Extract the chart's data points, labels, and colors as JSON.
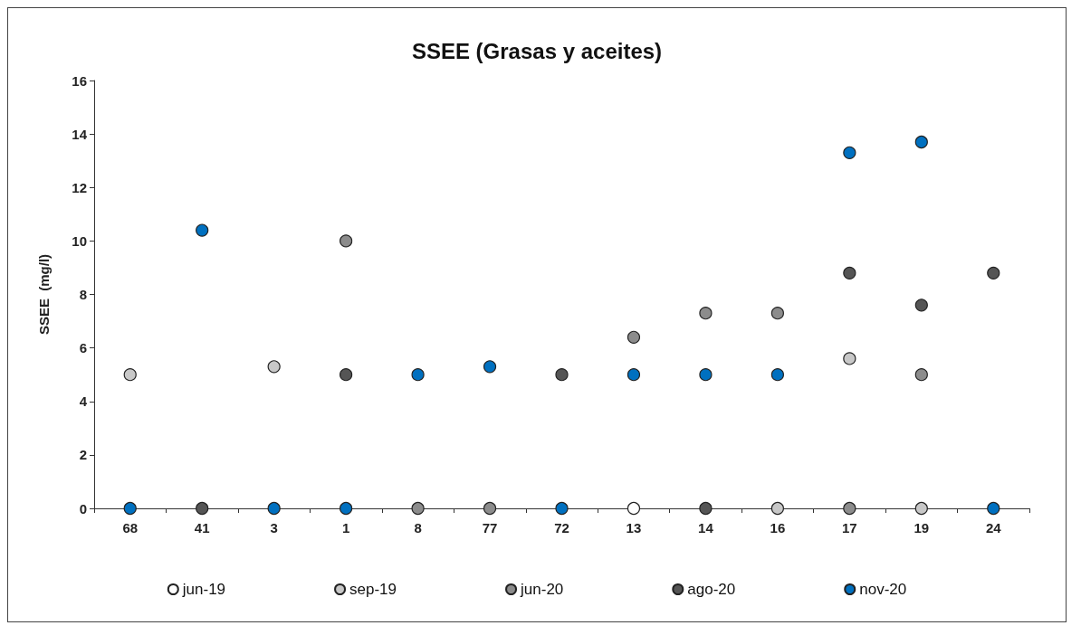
{
  "chart_data": {
    "type": "scatter",
    "title": "SSEE (Grasas y aceites)",
    "ylabel": "SSEE  (mg/l)",
    "categories": [
      "68",
      "41",
      "3",
      "1",
      "8",
      "77",
      "72",
      "13",
      "14",
      "16",
      "17",
      "19",
      "24"
    ],
    "series": [
      {
        "name": "jun-19",
        "color": "#ffffff",
        "values": [
          null,
          null,
          null,
          null,
          null,
          null,
          null,
          0,
          null,
          null,
          null,
          null,
          null
        ]
      },
      {
        "name": "sep-19",
        "color": "#c8c8c8",
        "values": [
          5.0,
          null,
          5.3,
          null,
          null,
          null,
          null,
          null,
          null,
          0,
          5.6,
          0,
          null
        ]
      },
      {
        "name": "jun-20",
        "color": "#8c8c8c",
        "values": [
          null,
          null,
          null,
          10.0,
          0,
          0,
          null,
          6.4,
          7.3,
          7.3,
          0,
          5.0,
          null
        ]
      },
      {
        "name": "ago-20",
        "color": "#555555",
        "values": [
          null,
          0,
          null,
          5.0,
          null,
          null,
          5.0,
          null,
          0,
          null,
          8.8,
          7.6,
          8.8
        ]
      },
      {
        "name": "nov-20",
        "color": "#0070c0",
        "values": [
          0,
          10.4,
          0,
          0,
          5.0,
          5.3,
          0,
          5.0,
          5.0,
          5.0,
          13.3,
          13.7,
          0
        ]
      }
    ],
    "ylim": [
      0,
      16
    ],
    "yticks": [
      0,
      2,
      4,
      6,
      8,
      10,
      12,
      14,
      16
    ],
    "grid": false,
    "legend": "bottom",
    "marker": "circle"
  }
}
